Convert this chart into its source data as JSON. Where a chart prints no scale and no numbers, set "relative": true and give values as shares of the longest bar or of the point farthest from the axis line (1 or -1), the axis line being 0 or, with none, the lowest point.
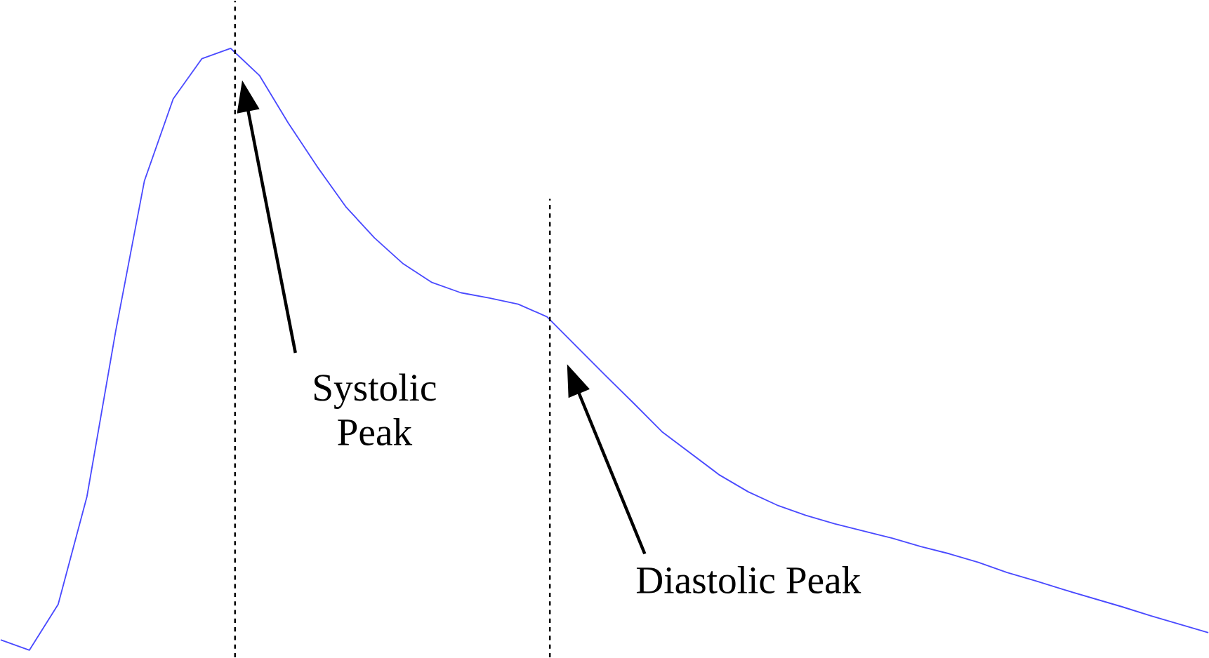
{
  "chart_data": {
    "type": "line",
    "relative": true,
    "categories": [
      null,
      null,
      null,
      null,
      null,
      null,
      null,
      null,
      null,
      null,
      null,
      null,
      null,
      null,
      null,
      null,
      null,
      null,
      null,
      null,
      null,
      null,
      null,
      null,
      null,
      null,
      null,
      null,
      null,
      null,
      null,
      null,
      null,
      null,
      null,
      null,
      null,
      null,
      null,
      null,
      null,
      null,
      null
    ],
    "series": [
      {
        "color": "#4a4aff",
        "values": [
          0.017,
          0.0,
          0.076,
          0.255,
          0.53,
          0.78,
          0.916,
          0.983,
          1.0,
          0.955,
          0.876,
          0.804,
          0.737,
          0.685,
          0.642,
          0.611,
          0.594,
          0.585,
          0.575,
          0.554,
          0.506,
          0.458,
          0.411,
          0.363,
          0.327,
          0.291,
          0.263,
          0.241,
          0.224,
          0.21,
          0.198,
          0.186,
          0.172,
          0.16,
          0.146,
          0.129,
          0.115,
          0.1,
          0.086,
          0.072,
          0.057,
          0.043,
          0.029
        ]
      }
    ],
    "annotations": [
      "Systolic Peak",
      "Diastolic Peak"
    ],
    "marker": "none",
    "line_style": "solid"
  }
}
